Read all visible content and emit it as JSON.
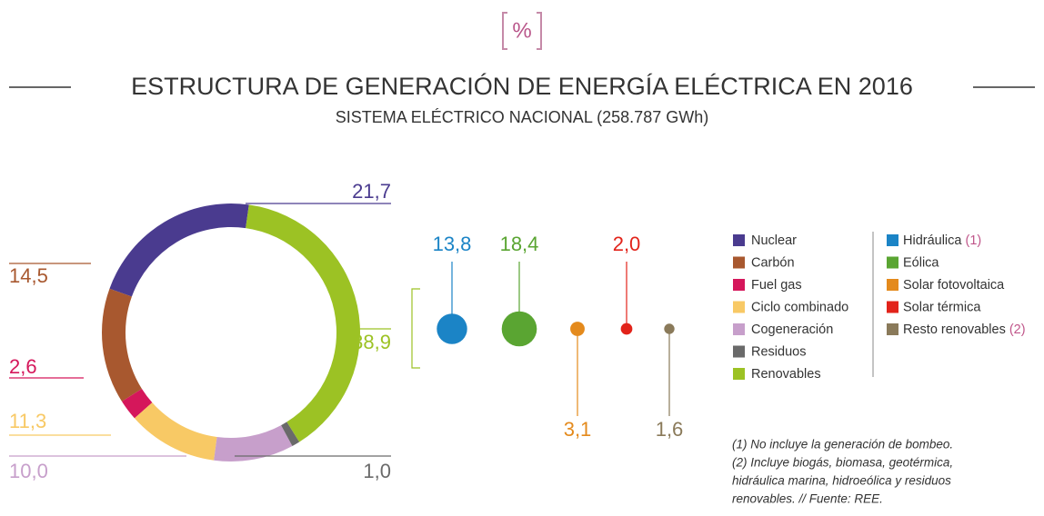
{
  "chart_data": [
    {
      "type": "donut",
      "icon": "%",
      "title": "ESTRUCTURA DE GENERACIÓN DE ENERGÍA ELÉCTRICA EN 2016",
      "subtitle": "SISTEMA ELÉCTRICO NACIONAL (258.787 GWh)",
      "categories": [
        "Nuclear",
        "Carbón",
        "Fuel gas",
        "Ciclo combinado",
        "Cogeneración",
        "Residuos",
        "Renovables"
      ],
      "values": [
        21.7,
        14.5,
        2.6,
        11.3,
        10.0,
        1.0,
        38.9
      ],
      "value_labels": [
        "21,7",
        "14,5",
        "2,6",
        "11,3",
        "10,0",
        "1,0",
        "38,9"
      ],
      "colors": [
        "#4a3b8f",
        "#a8582f",
        "#d5175b",
        "#f8c965",
        "#c79fcb",
        "#6a6a6a",
        "#9cc224"
      ]
    },
    {
      "type": "bubble",
      "categories": [
        "Hidráulica",
        "Eólica",
        "Solar fotovoltaica",
        "Solar térmica",
        "Resto renovables"
      ],
      "notes": [
        "(1)",
        null,
        null,
        null,
        "(2)"
      ],
      "values": [
        13.8,
        18.4,
        3.1,
        2.0,
        1.6
      ],
      "value_labels": [
        "13,8",
        "18,4",
        "3,1",
        "2,0",
        "1,6"
      ],
      "colors": [
        "#1b84c6",
        "#5aa532",
        "#e48a1c",
        "#e2231a",
        "#8a7a5a"
      ],
      "footnotes": [
        "(1) No incluye la generación de bombeo.",
        "(2) Incluye biogás, biomasa, geotérmica,",
        "hidráulica marina, hidroeólica y residuos",
        "renovables. // Fuente: REE."
      ]
    }
  ]
}
